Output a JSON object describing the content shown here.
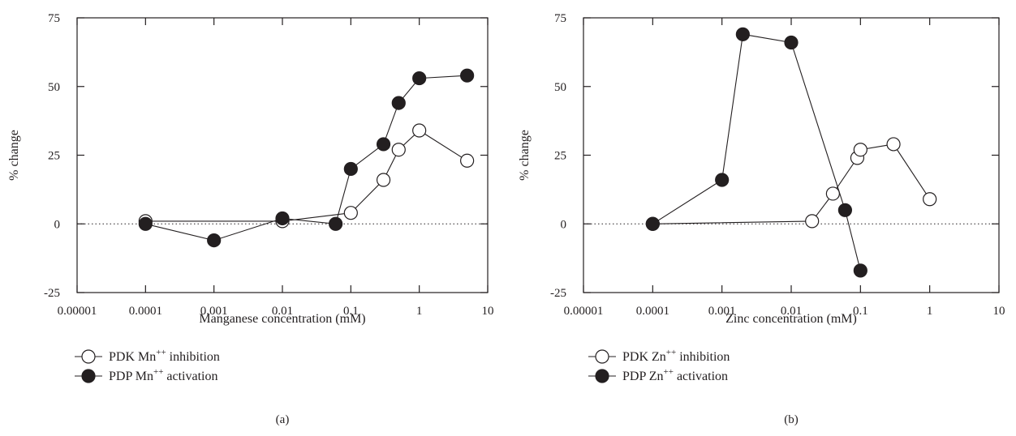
{
  "chart_data": [
    {
      "type": "scatter",
      "panel_label": "(a)",
      "xlabel": "Manganese concentration (mM)",
      "ylabel": "% change",
      "x_scale": "log",
      "xlim": [
        1e-05,
        10
      ],
      "ylim": [
        -25,
        75
      ],
      "x_ticks": [
        "0.00001",
        "0.0001",
        "0.001",
        "0.01",
        "0.1",
        "1",
        "10"
      ],
      "y_ticks": [
        "75",
        "50",
        "25",
        "0",
        "-25"
      ],
      "reference_line_y": 0,
      "legend_position": "below",
      "series": [
        {
          "legend_prefix": "PDK Mn",
          "legend_sup": "++",
          "legend_suffix": " inhibition",
          "marker": "open-circle",
          "x": [
            0.0001,
            0.01,
            0.1,
            0.3,
            0.5,
            1,
            5
          ],
          "y": [
            1,
            1,
            4,
            16,
            27,
            34,
            23
          ]
        },
        {
          "legend_prefix": "PDP Mn",
          "legend_sup": "++",
          "legend_suffix": " activation",
          "marker": "filled-circle",
          "x": [
            0.0001,
            0.001,
            0.01,
            0.06,
            0.1,
            0.3,
            0.5,
            1,
            5
          ],
          "y": [
            0,
            -6,
            2,
            0,
            20,
            29,
            44,
            53,
            54
          ]
        }
      ]
    },
    {
      "type": "scatter",
      "panel_label": "(b)",
      "xlabel": "Zinc concentration (mM)",
      "ylabel": "% change",
      "x_scale": "log",
      "xlim": [
        1e-05,
        10
      ],
      "ylim": [
        -25,
        75
      ],
      "x_ticks": [
        "0.00001",
        "0.0001",
        "0.001",
        "0.01",
        "0.1",
        "1",
        "10"
      ],
      "y_ticks": [
        "75",
        "50",
        "25",
        "0",
        "-25"
      ],
      "reference_line_y": 0,
      "legend_position": "below",
      "series": [
        {
          "legend_prefix": "PDK Zn",
          "legend_sup": "++",
          "legend_suffix": " inhibition",
          "marker": "open-circle",
          "x": [
            0.0001,
            0.02,
            0.04,
            0.09,
            0.1,
            0.3,
            1
          ],
          "y": [
            0,
            1,
            11,
            24,
            27,
            29,
            9
          ]
        },
        {
          "legend_prefix": "PDP Zn",
          "legend_sup": "++",
          "legend_suffix": " activation",
          "marker": "filled-circle",
          "x": [
            0.0001,
            0.001,
            0.002,
            0.01,
            0.06,
            0.1
          ],
          "y": [
            0,
            16,
            69,
            66,
            5,
            -17
          ]
        }
      ]
    }
  ]
}
